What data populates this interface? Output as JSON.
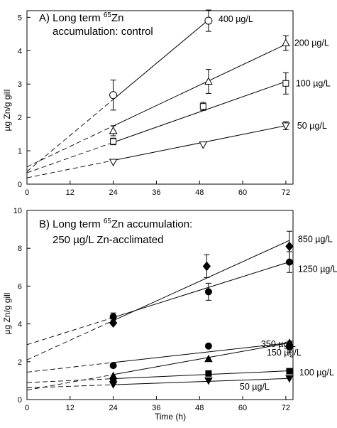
{
  "chart_data": [
    {
      "type": "scatter",
      "title_prefix": "A) Long term ",
      "title_sup": "65",
      "title_suffix": "Zn",
      "title_line2": "accumulation: control",
      "xlabel": "",
      "ylabel": "µg Zn/g gill",
      "xlim": [
        0,
        74
      ],
      "ylim": [
        0,
        5.2
      ],
      "xticks": [
        0,
        12,
        24,
        36,
        48,
        60,
        72
      ],
      "yticks": [
        0,
        1,
        2,
        3,
        4,
        5
      ],
      "series": [
        {
          "name": "400 µg/L",
          "marker": "circle-open",
          "x": [
            24,
            50.5
          ],
          "y": [
            2.67,
            4.9
          ],
          "err": [
            0.45,
            0.32
          ],
          "fit": [
            0.38,
            0.09
          ]
        },
        {
          "name": "200 µg/L",
          "marker": "triangle-up-open",
          "x": [
            24,
            50.5,
            72
          ],
          "y": [
            1.6,
            3.08,
            4.23
          ],
          "err": [
            0.15,
            0.36,
            0.22
          ],
          "fit": [
            0.52,
            0.051
          ]
        },
        {
          "name": "100 µg/L",
          "marker": "square-open",
          "x": [
            24,
            49,
            72
          ],
          "y": [
            1.28,
            2.33,
            3.02
          ],
          "err": [
            0.1,
            0.12,
            0.32
          ],
          "fit": [
            0.34,
            0.038
          ]
        },
        {
          "name": "50 µg/L",
          "marker": "triangle-down-open",
          "x": [
            24,
            49,
            72
          ],
          "y": [
            0.66,
            1.18,
            1.75
          ],
          "err": [
            0,
            0,
            0.12
          ],
          "fit": [
            0.19,
            0.0217
          ]
        }
      ]
    },
    {
      "type": "scatter",
      "title_prefix": "B) Long term ",
      "title_sup": "65",
      "title_suffix": "Zn accumulation:",
      "title_line2": "250 µg/L Zn-acclimated",
      "xlabel": "Time (h)",
      "ylabel": "µg Zn/g gill",
      "xlim": [
        0,
        74
      ],
      "ylim": [
        0,
        10
      ],
      "xticks": [
        0,
        12,
        24,
        36,
        48,
        60,
        72
      ],
      "yticks": [
        0,
        2,
        4,
        6,
        8,
        10
      ],
      "series": [
        {
          "name": "850 µg/L",
          "marker": "diamond-filled",
          "x": [
            24,
            50,
            73
          ],
          "y": [
            4.05,
            7.05,
            8.1
          ],
          "err": [
            0,
            0.6,
            0.8
          ],
          "fit": [
            2.1,
            0.0865
          ]
        },
        {
          "name": "1250 µg/L",
          "marker": "circle-filled",
          "x": [
            24,
            50.5,
            73
          ],
          "y": [
            4.38,
            5.7,
            7.27
          ],
          "err": [
            0.2,
            0.45,
            0.55
          ],
          "fit": [
            2.9,
            0.06
          ]
        },
        {
          "name": "350 µg/L",
          "marker": "circle-filled",
          "x": [
            24,
            50.5,
            73
          ],
          "y": [
            1.8,
            2.83,
            2.78
          ],
          "err": [
            0,
            0,
            0.3
          ],
          "fit": [
            1.45,
            0.0212
          ]
        },
        {
          "name": "150 µg/L",
          "marker": "triangle-up-filled",
          "x": [
            24,
            50.5,
            73
          ],
          "y": [
            1.25,
            2.15,
            3.0
          ],
          "err": [
            0,
            0,
            0
          ],
          "fit": [
            0.5,
            0.0342
          ]
        },
        {
          "name": "100 µg/L",
          "marker": "square-filled",
          "x": [
            24,
            50.5,
            73
          ],
          "y": [
            1.02,
            1.38,
            1.5
          ],
          "err": [
            0,
            0,
            0
          ],
          "fit": [
            0.9,
            0.0085
          ]
        },
        {
          "name": "50 µg/L",
          "marker": "triangle-down-filled",
          "x": [
            24,
            50.5,
            73
          ],
          "y": [
            0.8,
            1.0,
            1.12
          ],
          "err": [
            0,
            0,
            0
          ],
          "fit": [
            0.62,
            0.0068
          ]
        }
      ]
    }
  ]
}
